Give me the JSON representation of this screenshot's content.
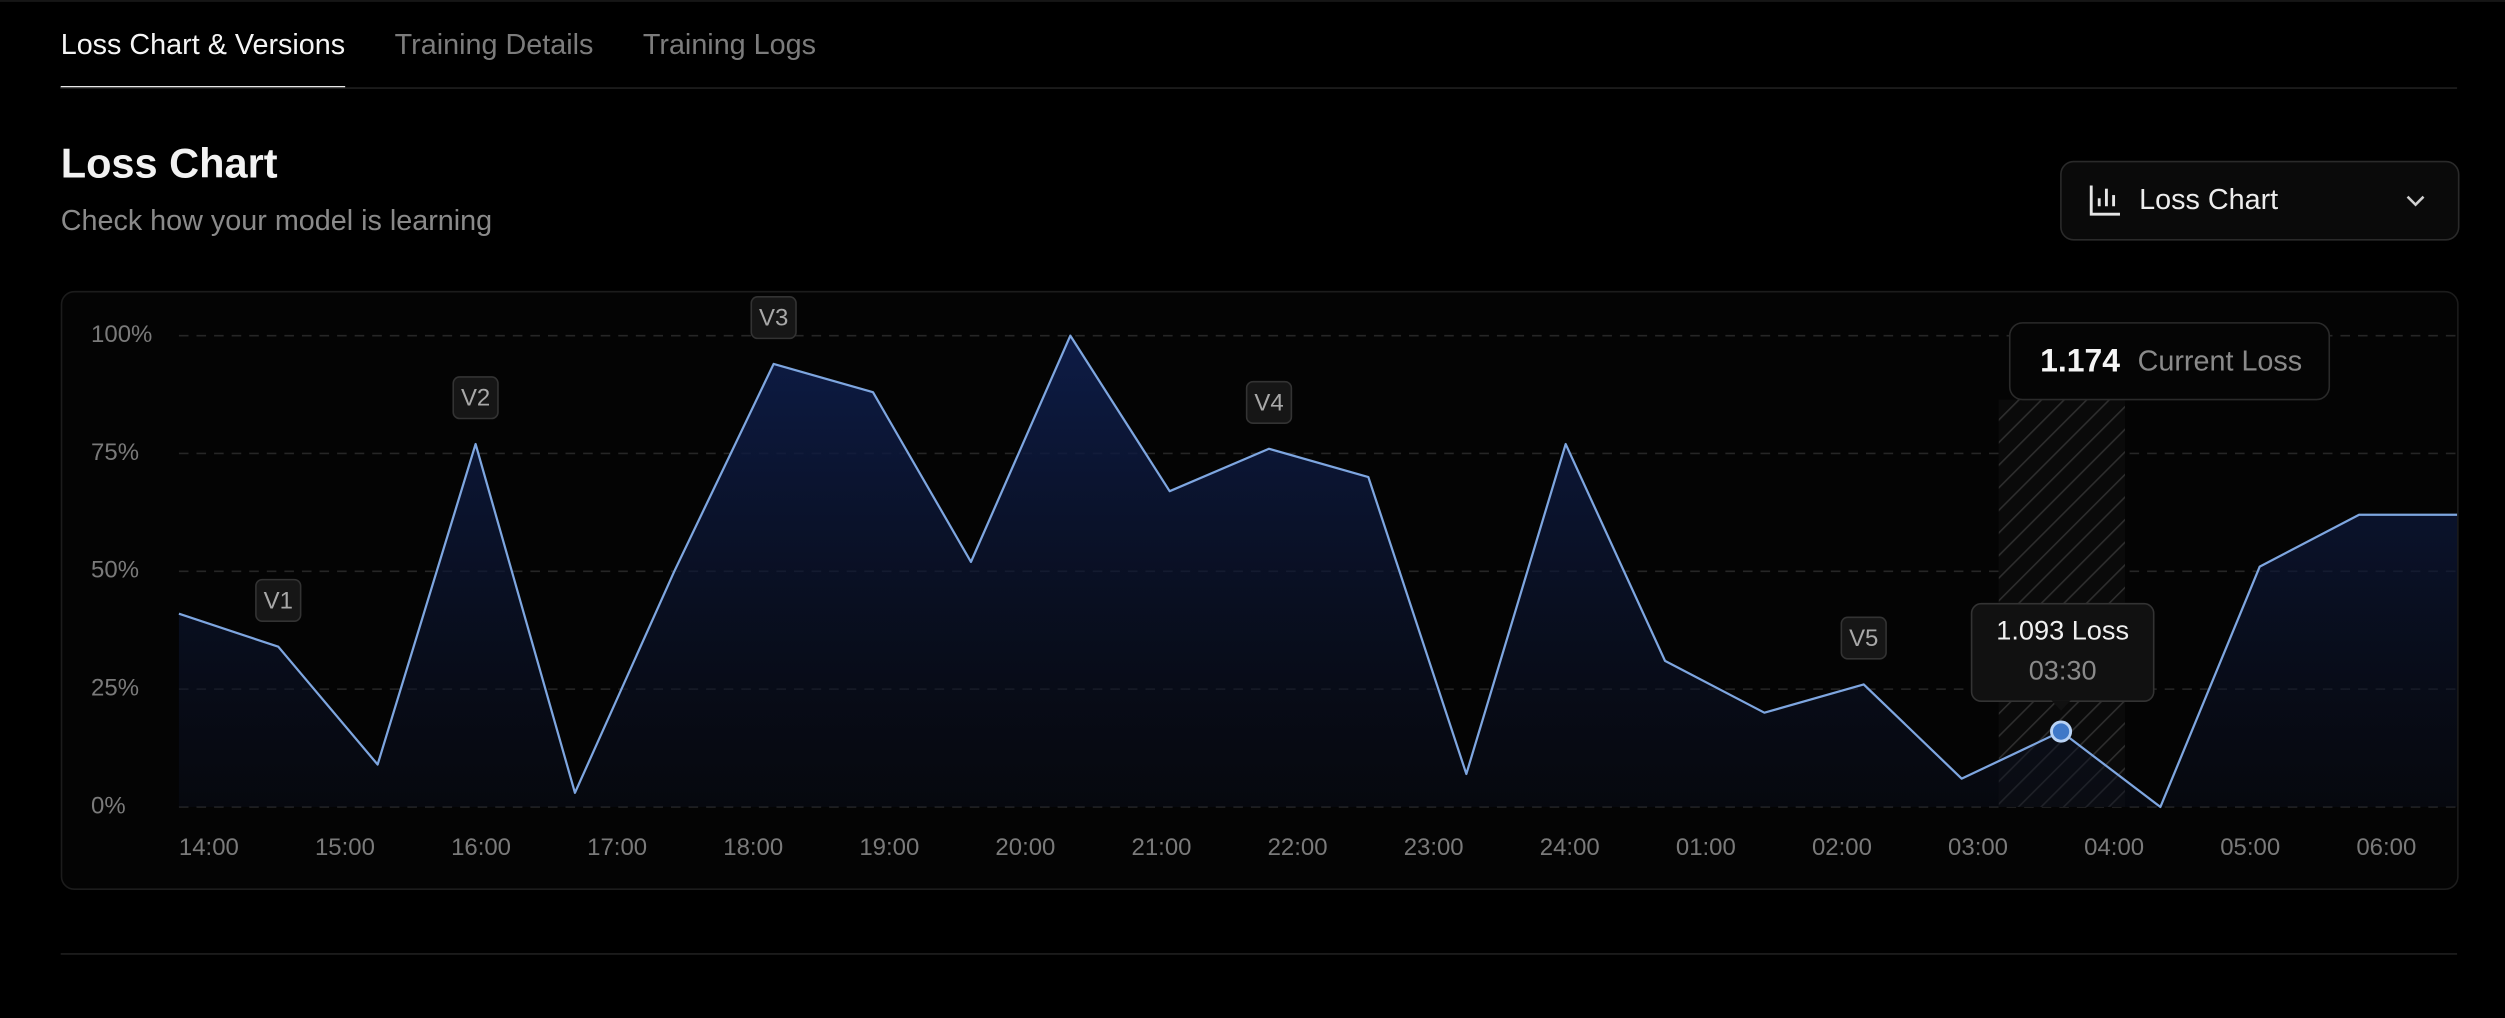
{
  "tabs": [
    {
      "label": "Loss Chart & Versions",
      "active": true
    },
    {
      "label": "Training Details"
    },
    {
      "label": "Training Logs"
    }
  ],
  "header": {
    "title": "Loss Chart",
    "subtitle": "Check how your model is learning"
  },
  "dropdown": {
    "label": "Loss Chart"
  },
  "current_loss": {
    "value": "1.174",
    "label": "Current Loss"
  },
  "chart_data": {
    "type": "line",
    "x": [
      13.78,
      14.51,
      15.24,
      15.96,
      16.69,
      17.42,
      18.15,
      18.88,
      19.6,
      20.33,
      21.06,
      21.79,
      22.52,
      23.24,
      23.97,
      24.7,
      25.43,
      26.16,
      26.88,
      27.61,
      28.34,
      29.07,
      29.8,
      30.52
    ],
    "values": [
      41,
      34,
      9,
      77,
      3,
      50,
      94,
      88,
      52,
      100,
      67,
      76,
      70,
      7,
      77,
      31,
      20,
      26,
      6,
      16,
      0,
      51,
      62,
      62
    ],
    "color": "#7ea6e0",
    "xlim": [
      13.78,
      30.52
    ],
    "xticks": [
      {
        "value": 14,
        "label": "14:00"
      },
      {
        "value": 15,
        "label": "15:00"
      },
      {
        "value": 16,
        "label": "16:00"
      },
      {
        "value": 17,
        "label": "17:00"
      },
      {
        "value": 18,
        "label": "18:00"
      },
      {
        "value": 19,
        "label": "19:00"
      },
      {
        "value": 20,
        "label": "20:00"
      },
      {
        "value": 21,
        "label": "21:00"
      },
      {
        "value": 22,
        "label": "22:00"
      },
      {
        "value": 23,
        "label": "23:00"
      },
      {
        "value": 24,
        "label": "24:00"
      },
      {
        "value": 25,
        "label": "01:00"
      },
      {
        "value": 26,
        "label": "02:00"
      },
      {
        "value": 27,
        "label": "03:00"
      },
      {
        "value": 28,
        "label": "04:00"
      },
      {
        "value": 29,
        "label": "05:00"
      },
      {
        "value": 30,
        "label": "06:00"
      }
    ],
    "ylim": [
      0,
      100
    ],
    "yticks": [
      {
        "value": 0,
        "label": "0%"
      },
      {
        "value": 25,
        "label": "25%"
      },
      {
        "value": 50,
        "label": "50%"
      },
      {
        "value": 75,
        "label": "75%"
      },
      {
        "value": 100,
        "label": "100%"
      }
    ],
    "grid": true,
    "versions": [
      {
        "label": "V1",
        "point": 1
      },
      {
        "label": "V2",
        "point": 3
      },
      {
        "label": "V3",
        "point": 6
      },
      {
        "label": "V4",
        "point": 11
      },
      {
        "label": "V5",
        "point": 17
      }
    ],
    "tooltip": {
      "value": "1.093 Loss",
      "time": "03:30",
      "point": 19
    }
  }
}
